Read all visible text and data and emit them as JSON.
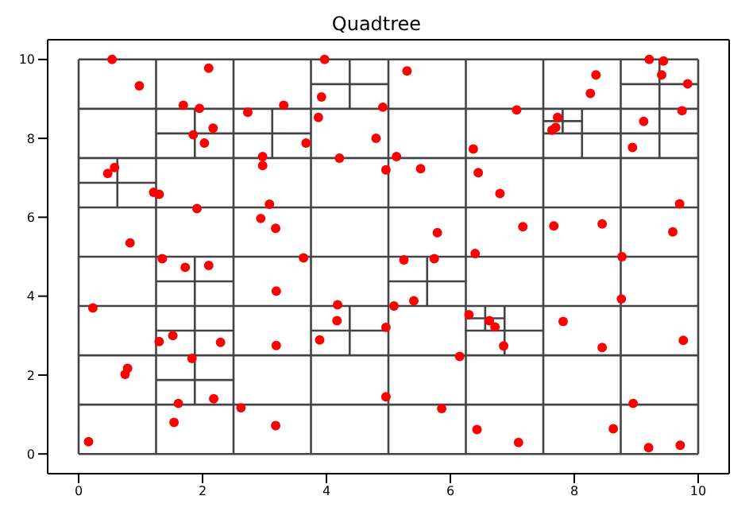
{
  "chart_data": {
    "type": "scatter",
    "title": "Quadtree",
    "xlim": [
      -0.5,
      10.5
    ],
    "ylim": [
      -0.5,
      10.5
    ],
    "xticks": [
      0,
      2,
      4,
      6,
      8,
      10
    ],
    "yticks": [
      0,
      2,
      4,
      6,
      8,
      10
    ],
    "series": [
      {
        "type": "line",
        "color": "#444444",
        "marker": "none",
        "x": [
          0,
          0
        ],
        "values": [
          0,
          10
        ]
      },
      {
        "type": "line",
        "color": "#444444",
        "marker": "none",
        "x": [
          1.25,
          1.25
        ],
        "values": [
          0,
          10
        ]
      },
      {
        "type": "line",
        "color": "#444444",
        "marker": "none",
        "x": [
          2.5,
          2.5
        ],
        "values": [
          0,
          10
        ]
      },
      {
        "type": "line",
        "color": "#444444",
        "marker": "none",
        "x": [
          3.75,
          3.75
        ],
        "values": [
          0,
          10
        ]
      },
      {
        "type": "line",
        "color": "#444444",
        "marker": "none",
        "x": [
          5,
          5
        ],
        "values": [
          0,
          10
        ]
      },
      {
        "type": "line",
        "color": "#444444",
        "marker": "none",
        "x": [
          6.25,
          6.25
        ],
        "values": [
          0,
          10
        ]
      },
      {
        "type": "line",
        "color": "#444444",
        "marker": "none",
        "x": [
          7.5,
          7.5
        ],
        "values": [
          0,
          10
        ]
      },
      {
        "type": "line",
        "color": "#444444",
        "marker": "none",
        "x": [
          8.75,
          8.75
        ],
        "values": [
          0,
          10
        ]
      },
      {
        "type": "line",
        "color": "#444444",
        "marker": "none",
        "x": [
          10,
          10
        ],
        "values": [
          0,
          10
        ]
      },
      {
        "type": "line",
        "color": "#444444",
        "marker": "none",
        "x": [
          0,
          10
        ],
        "values": [
          0,
          0
        ]
      },
      {
        "type": "line",
        "color": "#444444",
        "marker": "none",
        "x": [
          0,
          10
        ],
        "values": [
          1.25,
          1.25
        ]
      },
      {
        "type": "line",
        "color": "#444444",
        "marker": "none",
        "x": [
          0,
          10
        ],
        "values": [
          2.5,
          2.5
        ]
      },
      {
        "type": "line",
        "color": "#444444",
        "marker": "none",
        "x": [
          0,
          10
        ],
        "values": [
          3.75,
          3.75
        ]
      },
      {
        "type": "line",
        "color": "#444444",
        "marker": "none",
        "x": [
          0,
          10
        ],
        "values": [
          5,
          5
        ]
      },
      {
        "type": "line",
        "color": "#444444",
        "marker": "none",
        "x": [
          0,
          10
        ],
        "values": [
          6.25,
          6.25
        ]
      },
      {
        "type": "line",
        "color": "#444444",
        "marker": "none",
        "x": [
          0,
          10
        ],
        "values": [
          7.5,
          7.5
        ]
      },
      {
        "type": "line",
        "color": "#444444",
        "marker": "none",
        "x": [
          0,
          10
        ],
        "values": [
          8.75,
          8.75
        ]
      },
      {
        "type": "line",
        "color": "#444444",
        "marker": "none",
        "x": [
          0,
          10
        ],
        "values": [
          10,
          10
        ]
      },
      {
        "type": "line",
        "color": "#444444",
        "marker": "none",
        "x": [
          0.625,
          0.625
        ],
        "values": [
          6.25,
          7.5
        ]
      },
      {
        "type": "line",
        "color": "#444444",
        "marker": "none",
        "x": [
          0,
          1.25
        ],
        "values": [
          6.875,
          6.875
        ]
      },
      {
        "type": "line",
        "color": "#444444",
        "marker": "none",
        "x": [
          1.25,
          3.75
        ],
        "values": [
          8.125,
          8.125
        ]
      },
      {
        "type": "line",
        "color": "#444444",
        "marker": "none",
        "x": [
          1.875,
          1.875
        ],
        "values": [
          7.5,
          8.75
        ]
      },
      {
        "type": "line",
        "color": "#444444",
        "marker": "none",
        "x": [
          3.125,
          3.125
        ],
        "values": [
          7.5,
          8.75
        ]
      },
      {
        "type": "line",
        "color": "#444444",
        "marker": "none",
        "x": [
          4.375,
          4.375
        ],
        "values": [
          8.75,
          10
        ]
      },
      {
        "type": "line",
        "color": "#444444",
        "marker": "none",
        "x": [
          3.75,
          5
        ],
        "values": [
          9.375,
          9.375
        ]
      },
      {
        "type": "line",
        "color": "#444444",
        "marker": "none",
        "x": [
          8.125,
          8.125
        ],
        "values": [
          7.5,
          8.75
        ]
      },
      {
        "type": "line",
        "color": "#444444",
        "marker": "none",
        "x": [
          7.5,
          10
        ],
        "values": [
          8.125,
          8.125
        ]
      },
      {
        "type": "line",
        "color": "#444444",
        "marker": "none",
        "x": [
          7.8125,
          7.8125
        ],
        "values": [
          8.125,
          8.75
        ]
      },
      {
        "type": "line",
        "color": "#444444",
        "marker": "none",
        "x": [
          7.5,
          8.125
        ],
        "values": [
          8.4375,
          8.4375
        ]
      },
      {
        "type": "line",
        "color": "#444444",
        "marker": "none",
        "x": [
          9.375,
          9.375
        ],
        "values": [
          7.5,
          10
        ]
      },
      {
        "type": "line",
        "color": "#444444",
        "marker": "none",
        "x": [
          8.75,
          10
        ],
        "values": [
          9.375,
          9.375
        ]
      },
      {
        "type": "line",
        "color": "#444444",
        "marker": "none",
        "x": [
          1.25,
          2.5
        ],
        "values": [
          4.375,
          4.375
        ]
      },
      {
        "type": "line",
        "color": "#444444",
        "marker": "none",
        "x": [
          1.875,
          1.875
        ],
        "values": [
          1.25,
          5
        ]
      },
      {
        "type": "line",
        "color": "#444444",
        "marker": "none",
        "x": [
          1.25,
          2.5
        ],
        "values": [
          3.125,
          3.125
        ]
      },
      {
        "type": "line",
        "color": "#444444",
        "marker": "none",
        "x": [
          1.25,
          2.5
        ],
        "values": [
          1.875,
          1.875
        ]
      },
      {
        "type": "line",
        "color": "#444444",
        "marker": "none",
        "x": [
          4.375,
          4.375
        ],
        "values": [
          2.5,
          3.75
        ]
      },
      {
        "type": "line",
        "color": "#444444",
        "marker": "none",
        "x": [
          3.75,
          5
        ],
        "values": [
          3.125,
          3.125
        ]
      },
      {
        "type": "line",
        "color": "#444444",
        "marker": "none",
        "x": [
          5.625,
          5.625
        ],
        "values": [
          3.75,
          5
        ]
      },
      {
        "type": "line",
        "color": "#444444",
        "marker": "none",
        "x": [
          5,
          6.25
        ],
        "values": [
          4.375,
          4.375
        ]
      },
      {
        "type": "line",
        "color": "#444444",
        "marker": "none",
        "x": [
          6.875,
          6.875
        ],
        "values": [
          2.5,
          3.75
        ]
      },
      {
        "type": "line",
        "color": "#444444",
        "marker": "none",
        "x": [
          6.25,
          7.5
        ],
        "values": [
          3.125,
          3.125
        ]
      },
      {
        "type": "line",
        "color": "#444444",
        "marker": "none",
        "x": [
          6.5625,
          6.5625
        ],
        "values": [
          3.125,
          3.75
        ]
      },
      {
        "type": "line",
        "color": "#444444",
        "marker": "none",
        "x": [
          6.25,
          6.875
        ],
        "values": [
          3.4375,
          3.4375
        ]
      },
      {
        "color": "#ff0000",
        "marker": "circle",
        "x": [
          0.54,
          0.98,
          2.1,
          3.97,
          1.69,
          1.95,
          2.73,
          3.31,
          3.92,
          4.91,
          3.87,
          2.17,
          1.85,
          2.03,
          3.67,
          4.8,
          2.97,
          2.97,
          4.21,
          4.96,
          0.58,
          0.47,
          1.21,
          1.3,
          1.91,
          3.08,
          2.94,
          3.18,
          0.83,
          1.35,
          3.63,
          5.3,
          9.21,
          9.44,
          9.41,
          9.83,
          8.35,
          8.26,
          7.07,
          7.73,
          7.7,
          7.64,
          9.74,
          9.12,
          8.94,
          5.13,
          6.37,
          5.52,
          6.45,
          6.8,
          9.7,
          5.79,
          7.17,
          7.67,
          8.45,
          9.59,
          6.4,
          5.25,
          5.74,
          8.77,
          1.72,
          2.1,
          3.19,
          0.23,
          4.18,
          4.17,
          3.89,
          4.96,
          1.3,
          1.52,
          2.29,
          3.19,
          1.83,
          0.79,
          0.75,
          1.61,
          2.18,
          2.62,
          1.54,
          3.18,
          0.16,
          4.96,
          5.09,
          5.41,
          6.3,
          6.63,
          6.72,
          6.86,
          6.15,
          7.82,
          8.45,
          9.76,
          8.76,
          5.86,
          8.95,
          6.43,
          7.1,
          8.63,
          9.2,
          9.71
        ],
        "values": [
          10,
          9.33,
          9.78,
          10,
          8.84,
          8.76,
          8.66,
          8.84,
          9.05,
          8.79,
          8.53,
          8.26,
          8.09,
          7.88,
          7.88,
          8,
          7.54,
          7.31,
          7.5,
          7.2,
          7.26,
          7.11,
          6.63,
          6.58,
          6.22,
          6.33,
          5.97,
          5.72,
          5.35,
          4.95,
          4.97,
          9.71,
          10,
          9.96,
          9.61,
          9.38,
          9.61,
          9.14,
          8.72,
          8.53,
          8.28,
          8.21,
          8.7,
          8.43,
          7.77,
          7.54,
          7.73,
          7.23,
          7.13,
          6.6,
          6.34,
          5.61,
          5.76,
          5.78,
          5.83,
          5.63,
          5.08,
          4.92,
          4.95,
          5,
          4.73,
          4.78,
          4.13,
          3.7,
          3.78,
          3.38,
          2.89,
          3.21,
          2.85,
          3,
          2.83,
          2.75,
          2.42,
          2.17,
          2.02,
          1.28,
          1.4,
          1.17,
          0.8,
          0.72,
          0.31,
          1.45,
          3.75,
          3.88,
          3.53,
          3.38,
          3.22,
          2.74,
          2.47,
          3.36,
          2.7,
          2.88,
          3.93,
          1.15,
          1.28,
          0.62,
          0.29,
          0.64,
          0.16,
          0.22
        ]
      }
    ]
  }
}
